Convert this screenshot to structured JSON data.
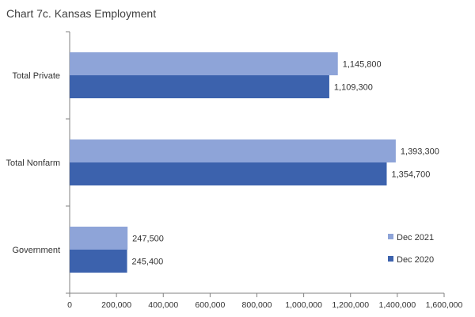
{
  "chart_data": {
    "type": "bar",
    "orientation": "horizontal",
    "title": "Chart 7c. Kansas Employment",
    "categories": [
      "Total Private",
      "Total Nonfarm",
      "Government"
    ],
    "series": [
      {
        "name": "Dec 2021",
        "values": [
          1145800,
          1393300,
          247500
        ],
        "labels": [
          "1,145,800",
          "1,393,300",
          "247,500"
        ],
        "color": "#8ea4d8"
      },
      {
        "name": "Dec 2020",
        "values": [
          1109300,
          1354700,
          245400
        ],
        "labels": [
          "1,109,300",
          "1,354,700",
          "245,400"
        ],
        "color": "#3c62ad"
      }
    ],
    "xlim": [
      0,
      1600000
    ],
    "xticks": [
      0,
      200000,
      400000,
      600000,
      800000,
      1000000,
      1200000,
      1400000,
      1600000
    ],
    "xtick_labels": [
      "0",
      "200,000",
      "400,000",
      "600,000",
      "800,000",
      "1,000,000",
      "1,200,000",
      "1,400,000",
      "1,600,000"
    ],
    "xlabel": "",
    "ylabel": "",
    "grid": false,
    "legend_position": "bottom-right"
  }
}
